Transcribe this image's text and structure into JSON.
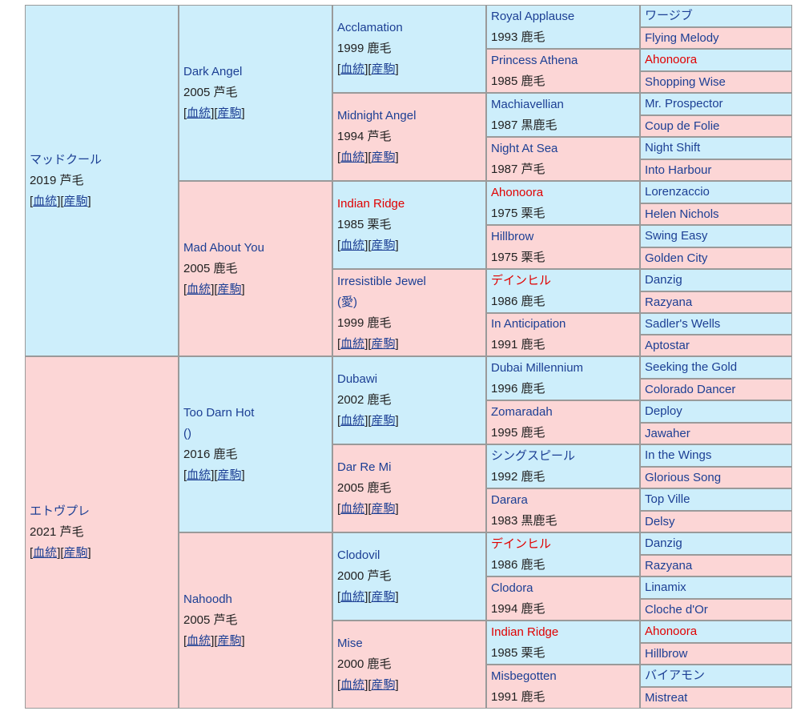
{
  "horse": {
    "name": "マッドクール",
    "info": "2019 芦毛"
  },
  "links": {
    "pedigree": "血統",
    "progeny": "産駒"
  },
  "sire": {
    "name": "Dark Angel",
    "info": "2005 芦毛"
  },
  "dam": {
    "name": "Mad About You",
    "info": "2005 鹿毛"
  },
  "ss": {
    "name": "Acclamation",
    "info": "1999 鹿毛"
  },
  "sd": {
    "name": "Midnight Angel",
    "info": "1994 芦毛"
  },
  "ds": {
    "name": "Indian Ridge",
    "info": "1985 栗毛"
  },
  "dd": {
    "name": "Irresistible Jewel",
    "name2": "(愛)",
    "info": "1999 鹿毛"
  },
  "sss": {
    "name": "Royal Applause",
    "info": "1993 鹿毛"
  },
  "ssd": {
    "name": "Princess Athena",
    "info": "1985 鹿毛"
  },
  "sds": {
    "name": "Machiavellian",
    "info": "1987 黒鹿毛"
  },
  "sdd": {
    "name": "Night At Sea",
    "info": "1987 芦毛"
  },
  "dss": {
    "name": "Ahonoora",
    "info": "1975 栗毛"
  },
  "dsd": {
    "name": "Hillbrow",
    "info": "1975 栗毛"
  },
  "dds": {
    "name": "デインヒル",
    "info": "1986 鹿毛"
  },
  "ddd": {
    "name": "In Anticipation",
    "info": "1991 鹿毛"
  },
  "g5a": [
    "ワージブ",
    "Flying Melody",
    "Ahonoora",
    "Shopping Wise",
    "Mr. Prospector",
    "Coup de Folie",
    "Night Shift",
    "Into Harbour",
    "Lorenzaccio",
    "Helen Nichols",
    "Swing Easy",
    "Golden City",
    "Danzig",
    "Razyana",
    "Sadler's Wells",
    "Aptostar"
  ],
  "horse2": {
    "name": "エトヴプレ",
    "info": "2021 芦毛"
  },
  "sire2": {
    "name": "Too Darn Hot",
    "name2": "()",
    "info": "2016 鹿毛"
  },
  "dam2": {
    "name": "Nahoodh",
    "info": "2005 芦毛"
  },
  "ss2": {
    "name": "Dubawi",
    "info": "2002 鹿毛"
  },
  "sd2": {
    "name": "Dar Re Mi",
    "info": "2005 鹿毛"
  },
  "ds2": {
    "name": "Clodovil",
    "info": "2000 芦毛"
  },
  "dd2": {
    "name": "Mise",
    "info": "2000 鹿毛"
  },
  "sss2": {
    "name": "Dubai Millennium",
    "info": "1996 鹿毛"
  },
  "ssd2": {
    "name": "Zomaradah",
    "info": "1995 鹿毛"
  },
  "sds2": {
    "name": "シングスピール",
    "info": "1992 鹿毛"
  },
  "sdd2": {
    "name": "Darara",
    "info": "1983 黒鹿毛"
  },
  "dss2": {
    "name": "デインヒル",
    "info": "1986 鹿毛"
  },
  "dsd2": {
    "name": "Clodora",
    "info": "1994 鹿毛"
  },
  "dds2": {
    "name": "Indian Ridge",
    "info": "1985 栗毛"
  },
  "ddd2": {
    "name": "Misbegotten",
    "info": "1991 鹿毛"
  },
  "g5b": [
    "Seeking the Gold",
    "Colorado Dancer",
    "Deploy",
    "Jawaher",
    "In the Wings",
    "Glorious Song",
    "Top Ville",
    "Delsy",
    "Danzig",
    "Razyana",
    "Linamix",
    "Cloche d'Or",
    "Ahonoora",
    "Hillbrow",
    "バイアモン",
    "Mistreat"
  ]
}
